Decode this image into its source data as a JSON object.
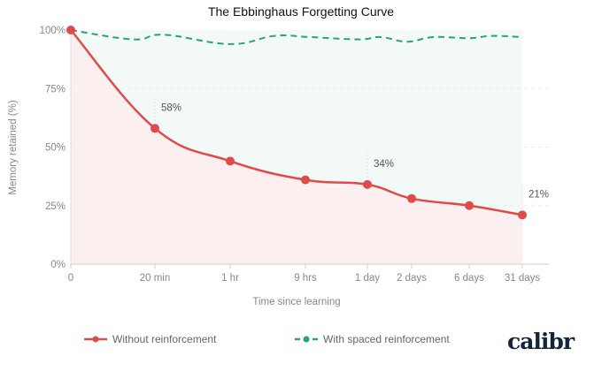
{
  "chart_data": {
    "type": "line",
    "title": "The Ebbinghaus Forgetting Curve",
    "xlabel": "Time since learning",
    "ylabel": "Memory retained (%)",
    "categories": [
      "0",
      "20 min",
      "1 hr",
      "9 hrs",
      "1 day",
      "2 days",
      "6 days",
      "31 days"
    ],
    "yticks": [
      "0%",
      "25%",
      "50%",
      "75%",
      "100%"
    ],
    "ylim": [
      0,
      100
    ],
    "grid": true,
    "legend_position": "bottom",
    "series": [
      {
        "name": "Without reinforcement",
        "color": "#e04a4a",
        "values": [
          100,
          58,
          44,
          36,
          34,
          28,
          25,
          21
        ]
      },
      {
        "name": "With spaced reinforcement",
        "color": "#2aa27a",
        "dashed": true,
        "points": [
          [
            0,
            100
          ],
          [
            0.74,
            96
          ],
          [
            1.12,
            98
          ],
          [
            2,
            94
          ],
          [
            2.59,
            97.5
          ],
          [
            3.07,
            97
          ],
          [
            3.86,
            96
          ],
          [
            4.3,
            97
          ],
          [
            4.9,
            95
          ],
          [
            5.38,
            97
          ],
          [
            6,
            96.5
          ],
          [
            6.42,
            97.5
          ],
          [
            7,
            97
          ]
        ]
      }
    ],
    "annotations": [
      {
        "category": "20 min",
        "label": "58%"
      },
      {
        "category": "1 day",
        "label": "34%"
      },
      {
        "category": "31 days",
        "label": "21%"
      }
    ]
  },
  "brand": {
    "logo_text": "calibr"
  }
}
